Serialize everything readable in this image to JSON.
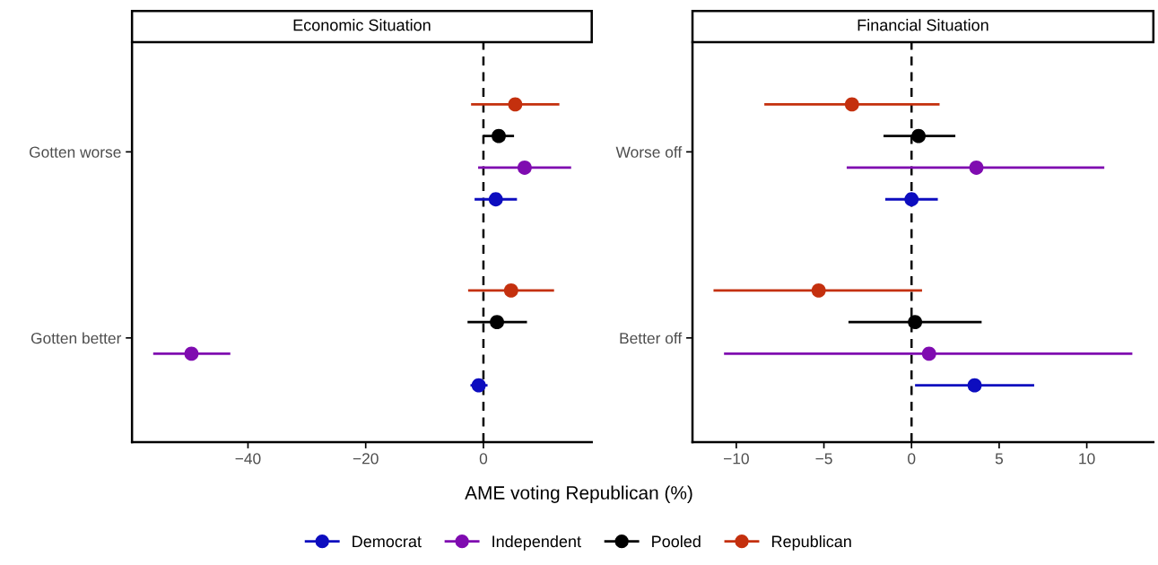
{
  "chart_data": [
    {
      "type": "scatter",
      "orientation": "horizontal",
      "title": "Economic Situation",
      "xlabel": "AME voting Republican (%)",
      "categories": [
        "Gotten worse",
        "Gotten better"
      ],
      "xlim": [
        -59.7,
        18.4
      ],
      "xticks": [
        {
          "value": -40,
          "label": "−40"
        },
        {
          "value": -20,
          "label": "−20"
        },
        0
      ],
      "marker": "circle",
      "legend": "bottom",
      "ref_lines": [
        {
          "axis": "x",
          "value": 0,
          "line_style": "dashed",
          "color": "#000000"
        }
      ],
      "series": [
        {
          "name": "Democrat",
          "color": "#0d0dbf",
          "values": [
            2.1,
            -0.8
          ],
          "errors": [
            [
              -1.5,
              5.7
            ],
            [
              -2.2,
              0.7
            ]
          ]
        },
        {
          "name": "Independent",
          "color": "#7f0bb0",
          "values": [
            7.0,
            -49.6
          ],
          "errors": [
            [
              -0.9,
              14.9
            ],
            [
              -56.1,
              -43.0
            ]
          ]
        },
        {
          "name": "Pooled",
          "color": "#000000",
          "values": [
            2.6,
            2.3
          ],
          "errors": [
            [
              0.0,
              5.2
            ],
            [
              -2.7,
              7.4
            ]
          ]
        },
        {
          "name": "Republican",
          "color": "#c4300e",
          "values": [
            5.4,
            4.7
          ],
          "errors": [
            [
              -2.1,
              12.9
            ],
            [
              -2.6,
              12.0
            ]
          ]
        }
      ]
    },
    {
      "type": "scatter",
      "orientation": "horizontal",
      "title": "Financial Situation",
      "categories": [
        "Worse off",
        "Better off"
      ],
      "xlim": [
        -12.5,
        13.8
      ],
      "xticks": [
        {
          "value": -10,
          "label": "−10"
        },
        {
          "value": -5,
          "label": "−5"
        },
        0,
        5,
        10
      ],
      "marker": "circle",
      "ref_lines": [
        {
          "axis": "x",
          "value": 0,
          "line_style": "dashed",
          "color": "#000000"
        }
      ],
      "series": [
        {
          "color": "#0d0dbf",
          "values": [
            0.0,
            3.6
          ],
          "errors": [
            [
              -1.5,
              1.5
            ],
            [
              0.2,
              7.0
            ]
          ]
        },
        {
          "color": "#7f0bb0",
          "values": [
            3.7,
            1.0
          ],
          "errors": [
            [
              -3.7,
              11.0
            ],
            [
              -10.7,
              12.6
            ]
          ]
        },
        {
          "color": "#000000",
          "values": [
            0.4,
            0.2
          ],
          "errors": [
            [
              -1.6,
              2.5
            ],
            [
              -3.6,
              4.0
            ]
          ]
        },
        {
          "color": "#c4300e",
          "values": [
            -3.4,
            -5.3
          ],
          "errors": [
            [
              -8.4,
              1.6
            ],
            [
              -11.3,
              0.6
            ]
          ]
        }
      ]
    }
  ]
}
